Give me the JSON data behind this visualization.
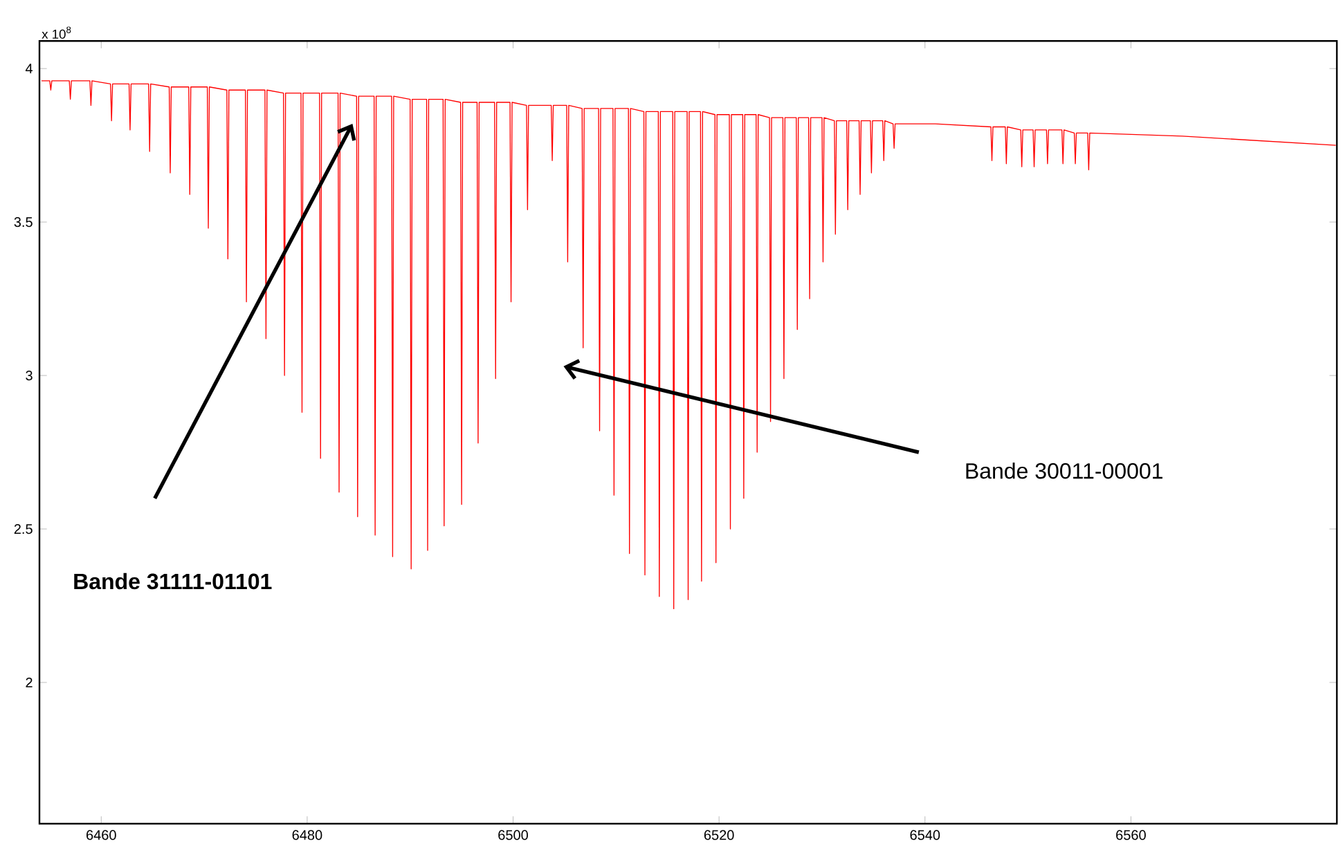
{
  "chart_data": {
    "type": "line",
    "annotations": [
      "x 10$^{8}$",
      "Bande 31111-01101",
      "Bande 30011-00001"
    ],
    "xlim": [
      6454,
      6580
    ],
    "ylim": [
      1.54,
      4.09
    ],
    "xticks": [
      6460,
      6480,
      6500,
      6520,
      6540,
      6560
    ],
    "yticks": [
      2,
      2.5,
      3,
      3.5,
      4
    ],
    "series": [
      {
        "color": "#ff0000",
        "x": [
          6454.2,
          6455.0,
          6455.1,
          6455.2,
          6456.9,
          6457.0,
          6457.1,
          6458.9,
          6459.0,
          6459.1,
          6460.9,
          6461.0,
          6461.1,
          6462.7,
          6462.8,
          6462.9,
          6464.6,
          6464.7,
          6464.8,
          6466.6,
          6466.7,
          6466.8,
          6468.5,
          6468.6,
          6468.7,
          6470.3,
          6470.4,
          6470.5,
          6472.2,
          6472.3,
          6472.4,
          6474.0,
          6474.1,
          6474.2,
          6475.9,
          6476.0,
          6476.1,
          6477.7,
          6477.8,
          6477.9,
          6479.4,
          6479.5,
          6479.6,
          6481.2,
          6481.3,
          6481.4,
          6483.0,
          6483.1,
          6483.2,
          6484.8,
          6484.9,
          6485.0,
          6486.5,
          6486.6,
          6486.7,
          6488.2,
          6488.3,
          6488.4,
          6490.0,
          6490.1,
          6490.2,
          6491.6,
          6491.7,
          6491.8,
          6493.2,
          6493.3,
          6493.4,
          6494.9,
          6495.0,
          6495.1,
          6496.5,
          6496.6,
          6496.7,
          6498.2,
          6498.3,
          6498.4,
          6499.7,
          6499.8,
          6499.9,
          6501.3,
          6501.4,
          6501.5,
          6503.7,
          6503.8,
          6503.9,
          6505.2,
          6505.3,
          6505.4,
          6506.7,
          6506.8,
          6506.9,
          6508.3,
          6508.4,
          6508.5,
          6509.7,
          6509.8,
          6509.9,
          6511.2,
          6511.3,
          6511.4,
          6512.7,
          6512.8,
          6512.9,
          6514.1,
          6514.2,
          6514.3,
          6515.5,
          6515.6,
          6515.7,
          6516.9,
          6517.0,
          6517.1,
          6518.2,
          6518.3,
          6518.4,
          6519.6,
          6519.7,
          6519.8,
          6521.0,
          6521.1,
          6521.2,
          6522.3,
          6522.4,
          6522.5,
          6523.6,
          6523.7,
          6523.8,
          6524.9,
          6525.0,
          6525.1,
          6526.2,
          6526.3,
          6526.4,
          6527.5,
          6527.6,
          6527.7,
          6528.7,
          6528.8,
          6528.9,
          6530.0,
          6530.1,
          6530.2,
          6531.2,
          6531.3,
          6531.4,
          6532.4,
          6532.5,
          6532.6,
          6533.6,
          6533.7,
          6533.8,
          6534.7,
          6534.8,
          6534.9,
          6535.9,
          6536.0,
          6536.1,
          6536.9,
          6537.0,
          6537.1,
          6541.0,
          6546.4,
          6546.5,
          6546.6,
          6547.8,
          6547.9,
          6548.0,
          6549.3,
          6549.4,
          6549.5,
          6550.5,
          6550.6,
          6550.7,
          6551.8,
          6551.9,
          6552.0,
          6553.3,
          6553.4,
          6553.5,
          6554.5,
          6554.6,
          6554.7,
          6555.8,
          6555.9,
          6556.0,
          6565.0,
          6579.9
        ],
        "values": [
          3.96,
          3.96,
          3.93,
          3.96,
          3.96,
          3.9,
          3.96,
          3.96,
          3.88,
          3.96,
          3.95,
          3.83,
          3.95,
          3.95,
          3.8,
          3.95,
          3.95,
          3.73,
          3.95,
          3.94,
          3.66,
          3.94,
          3.94,
          3.59,
          3.94,
          3.94,
          3.48,
          3.94,
          3.93,
          3.38,
          3.93,
          3.93,
          3.24,
          3.93,
          3.93,
          3.12,
          3.93,
          3.92,
          3.0,
          3.92,
          3.92,
          2.88,
          3.92,
          3.92,
          2.73,
          3.92,
          3.92,
          2.62,
          3.92,
          3.91,
          2.54,
          3.91,
          3.91,
          2.48,
          3.91,
          3.91,
          2.41,
          3.91,
          3.9,
          2.37,
          3.9,
          3.9,
          2.43,
          3.9,
          3.9,
          2.51,
          3.9,
          3.89,
          2.58,
          3.89,
          3.89,
          2.78,
          3.89,
          3.89,
          2.99,
          3.89,
          3.89,
          3.24,
          3.89,
          3.88,
          3.54,
          3.88,
          3.88,
          3.7,
          3.88,
          3.88,
          3.37,
          3.88,
          3.87,
          3.09,
          3.87,
          3.87,
          2.82,
          3.87,
          3.87,
          2.61,
          3.87,
          3.87,
          2.42,
          3.87,
          3.86,
          2.35,
          3.86,
          3.86,
          2.28,
          3.86,
          3.86,
          2.24,
          3.86,
          3.86,
          2.27,
          3.86,
          3.86,
          2.33,
          3.86,
          3.85,
          2.39,
          3.85,
          3.85,
          2.5,
          3.85,
          3.85,
          2.6,
          3.85,
          3.85,
          2.75,
          3.85,
          3.84,
          2.85,
          3.84,
          3.84,
          2.99,
          3.84,
          3.84,
          3.15,
          3.84,
          3.84,
          3.25,
          3.84,
          3.84,
          3.37,
          3.84,
          3.83,
          3.46,
          3.83,
          3.83,
          3.54,
          3.83,
          3.83,
          3.59,
          3.83,
          3.83,
          3.66,
          3.83,
          3.83,
          3.7,
          3.83,
          3.82,
          3.74,
          3.82,
          3.82,
          3.81,
          3.7,
          3.81,
          3.81,
          3.69,
          3.81,
          3.8,
          3.68,
          3.8,
          3.8,
          3.68,
          3.8,
          3.8,
          3.69,
          3.8,
          3.8,
          3.69,
          3.8,
          3.79,
          3.69,
          3.79,
          3.79,
          3.67,
          3.79,
          3.78,
          3.75
        ]
      }
    ]
  }
}
